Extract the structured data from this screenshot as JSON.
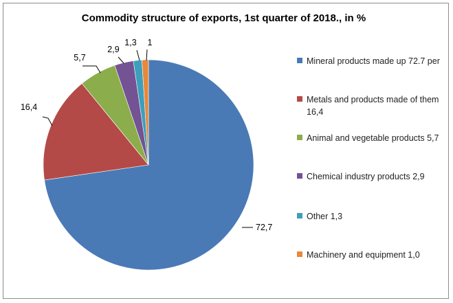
{
  "chart_data": {
    "type": "pie",
    "title": "Commodity structure of exports, 1st quarter of 2018., in %",
    "slices": [
      {
        "label": "Mineral products made up 72.7 per",
        "value": 72.7,
        "data_label": "72,7",
        "color": "#4a7ab5"
      },
      {
        "label": "Metals and products made of them 16,4",
        "value": 16.4,
        "data_label": "16,4",
        "color": "#b44a47"
      },
      {
        "label": "Animal and vegetable products 5,7",
        "value": 5.7,
        "data_label": "5,7",
        "color": "#8cad4b"
      },
      {
        "label": "Chemical industry products 2,9",
        "value": 2.9,
        "data_label": "2,9",
        "color": "#735393"
      },
      {
        "label": "Other 1,3",
        "value": 1.3,
        "data_label": "1,3",
        "color": "#3d9fbc"
      },
      {
        "label": "Machinery and equipment 1,0",
        "value": 1.0,
        "data_label": "1",
        "color": "#e8883a"
      }
    ],
    "legend_position": "right"
  }
}
